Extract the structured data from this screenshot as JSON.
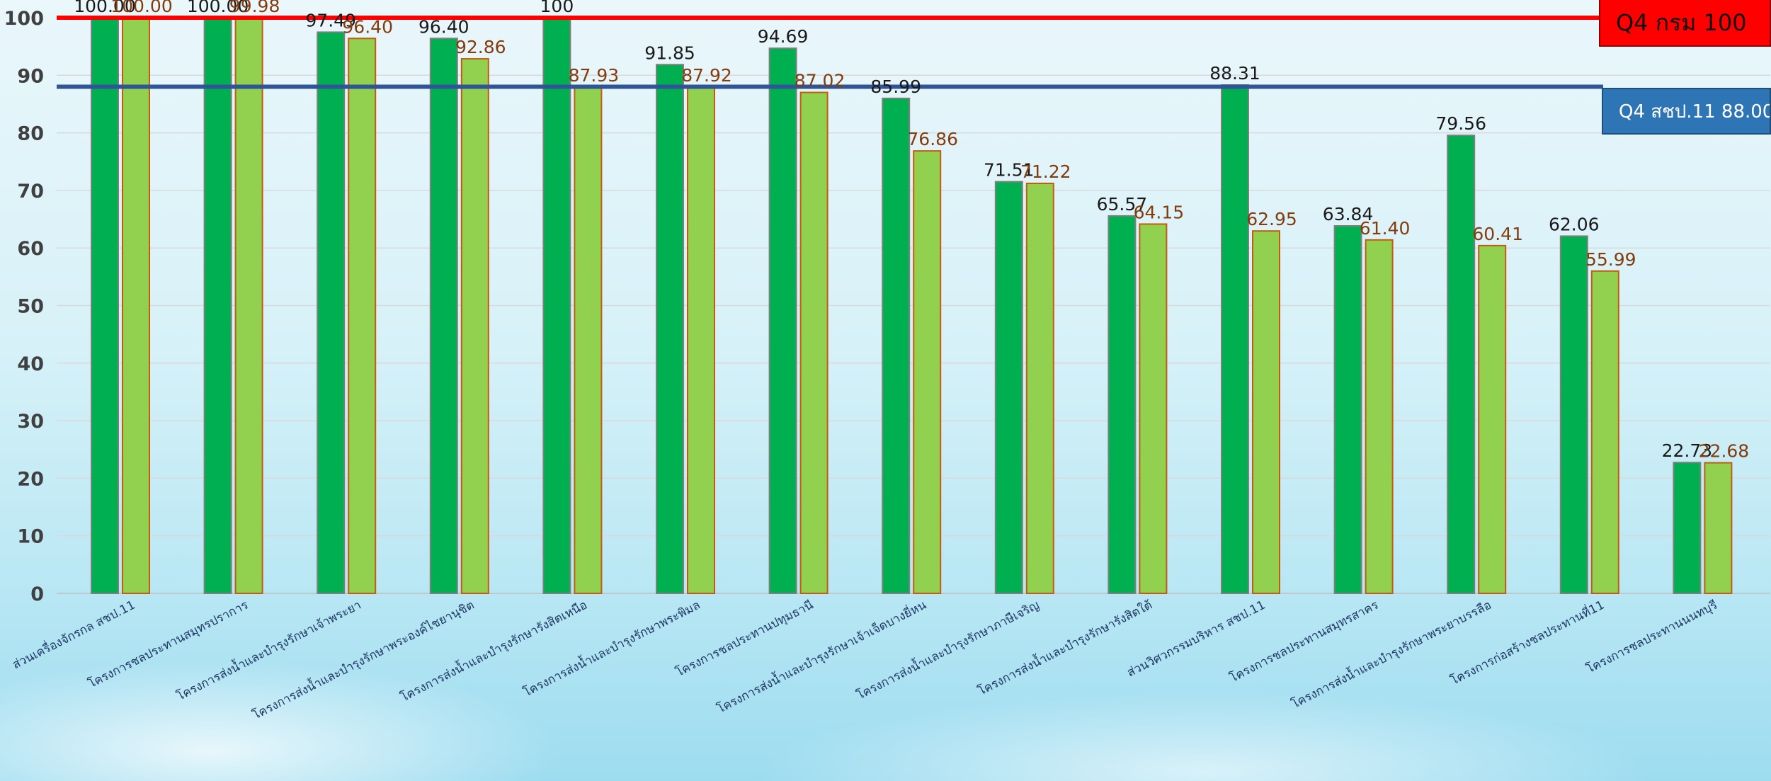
{
  "chart_data": {
    "type": "bar",
    "title": "",
    "xlabel": "",
    "ylabel": "",
    "ylim": [
      0,
      100
    ],
    "yticks": [
      0,
      10,
      20,
      30,
      40,
      50,
      60,
      70,
      80,
      90,
      100
    ],
    "grid": true,
    "categories": [
      "ส่วนเครื่องจักรกล สชป.11",
      "โครงการชลประทานสมุทรปราการ",
      "โครงการส่งน้ำและบำรุงรักษาเจ้าพระยา",
      "โครงการส่งน้ำและบำรุงรักษาพระองค์ไชยานุชิต",
      "โครงการส่งน้ำและบำรุงรักษารังสิตเหนือ",
      "โครงการส่งน้ำและบำรุงรักษาพระพิมล",
      "โครงการชลประทานปทุมธานี",
      "โครงการส่งน้ำและบำรุงรักษาเจ้าเจ็ดบางยี่หน",
      "โครงการส่งน้ำและบำรุงรักษาภาษีเจริญ",
      "โครงการส่งน้ำและบำรุงรักษารังสิตใต้",
      "ส่วนวิศวกรรมบริหาร สชป.11",
      "โครงการชลประทานสมุทรสาคร",
      "โครงการส่งน้ำและบำรุงรักษาพระยาบรรลือ",
      "โครงการก่อสร้างชลประทานที่11",
      "โครงการชลประทานนนทบุรี"
    ],
    "series": [
      {
        "values": [
          100.0,
          100.0,
          97.49,
          96.4,
          100,
          91.85,
          94.69,
          85.99,
          71.51,
          65.57,
          88.31,
          63.84,
          79.56,
          62.06,
          22.73
        ],
        "labels": [
          "100.00",
          "100.00",
          "97.49",
          "96.40",
          "100",
          "91.85",
          "94.69",
          "85.99",
          "71.51",
          "65.57",
          "88.31",
          "63.84",
          "79.56",
          "62.06",
          "22.73"
        ],
        "color": "#00b050",
        "edge": "#7f7f7f",
        "label_color": "#1a1a1a"
      },
      {
        "values": [
          100.0,
          99.98,
          96.4,
          92.86,
          87.93,
          87.92,
          87.02,
          76.86,
          71.22,
          64.15,
          62.95,
          61.4,
          60.41,
          55.99,
          22.68
        ],
        "labels": [
          "100.00",
          "99.98",
          "96.40",
          "92.86",
          "87.93",
          "87.92",
          "87.02",
          "76.86",
          "71.22",
          "64.15",
          "62.95",
          "61.40",
          "60.41",
          "55.99",
          "22.68"
        ],
        "color": "#92d050",
        "edge": "#c55a11",
        "label_color": "#843c0c"
      }
    ],
    "reference_lines": [
      {
        "label": "Q4 กรม 100",
        "value": 100,
        "color": "#ff0000"
      },
      {
        "label": "Q4 สชป.11 88.00",
        "value": 88.0,
        "color": "#2f5597"
      }
    ]
  }
}
